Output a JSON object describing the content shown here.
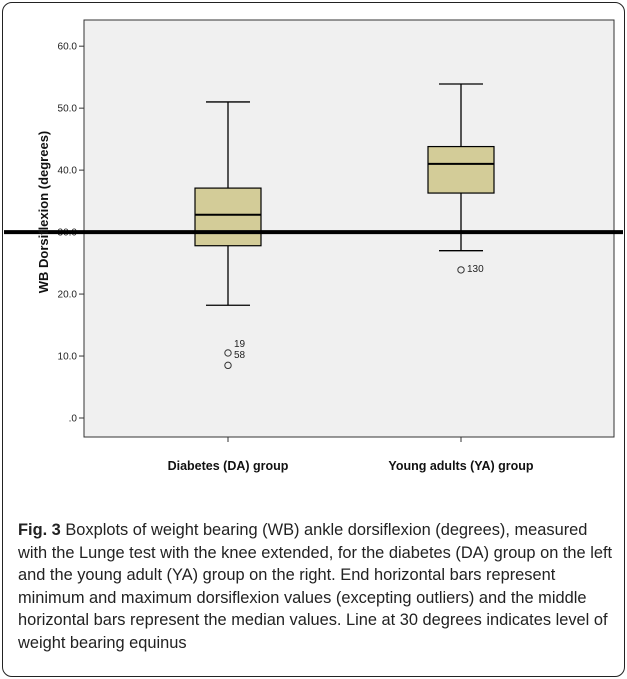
{
  "chart_data": {
    "type": "boxplot",
    "title": "",
    "xlabel": "",
    "ylabel": "WB Dorsiflexion (degrees)",
    "ylim": [
      0,
      62
    ],
    "yticks": [
      {
        "value": 0,
        "label": ".0"
      },
      {
        "value": 10,
        "label": "10.0"
      },
      {
        "value": 20,
        "label": "20.0"
      },
      {
        "value": 30,
        "label": "30.0"
      },
      {
        "value": 40,
        "label": "40.0"
      },
      {
        "value": 50,
        "label": "50.0"
      },
      {
        "value": 60,
        "label": "60.0"
      }
    ],
    "categories": [
      "Diabetes (DA) group",
      "Young adults (YA) group"
    ],
    "boxes": [
      {
        "category": "Diabetes (DA) group",
        "min": 18.2,
        "q1": 27.8,
        "median": 32.8,
        "q3": 37.1,
        "max": 51.0,
        "outliers": [
          {
            "value": 10.5,
            "label": "19"
          },
          {
            "value": 8.5,
            "label": "58"
          }
        ]
      },
      {
        "category": "Young adults (YA) group",
        "min": 27.0,
        "q1": 36.3,
        "median": 41.0,
        "q3": 43.8,
        "max": 53.9,
        "outliers": [
          {
            "value": 23.9,
            "label": "130"
          }
        ]
      }
    ],
    "reference_line": {
      "value": 30
    },
    "grid": false,
    "colors": {
      "box_fill": "#d3cc98",
      "plot_background": "#f0f0f0",
      "line": "#000000"
    }
  },
  "caption": {
    "label": "Fig. 3",
    "text": " Boxplots of weight bearing (WB) ankle dorsiflexion (degrees), measured with the Lunge test with the knee extended, for the diabetes (DA) group on the left and the young adult (YA) group on the right. End horizontal bars represent minimum and maximum dorsiflexion values (excepting outliers) and the middle horizontal bars represent the median values. Line at 30 degrees indicates level of weight bearing equinus"
  }
}
